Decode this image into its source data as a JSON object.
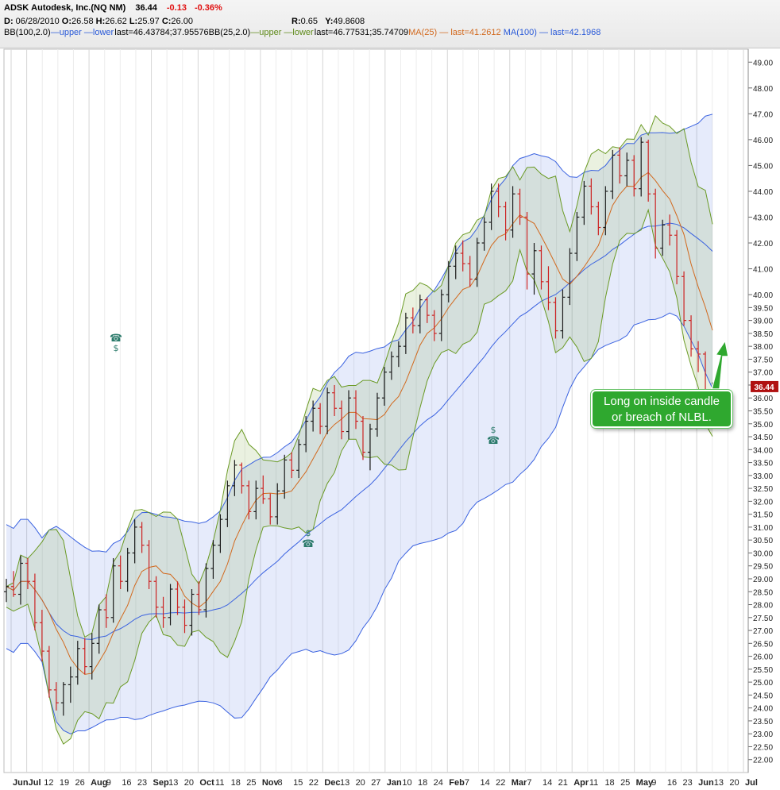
{
  "header": {
    "symbol": "ADSK",
    "company": "Autodesk, Inc.(NQ NM)",
    "last": "36.44",
    "change": "-0.13",
    "change_pct": "-0.36%",
    "date_label": "D:",
    "date": "06/28/2010",
    "open_label": "O:",
    "open": "26.58",
    "high_label": "H:",
    "high": "26.62",
    "low_label": "L:",
    "low": "25.97",
    "close_label": "C:",
    "close": "26.00",
    "r_label": "R:",
    "r": "0.65",
    "y_label": "Y:",
    "y": "49.8608",
    "bb100_label": "BB(100,2.0)",
    "bb100_upper": "upper",
    "bb100_lower": "lower",
    "bb100_last": "last=46.43784;37.95576",
    "bb25_label": "BB(25,2.0)",
    "bb25_upper": "upper",
    "bb25_lower": "lower",
    "bb25_last": "last=46.77531;35.74709",
    "ma25_label": "MA(25)",
    "ma25_last": "last=41.2612",
    "ma100_label": "MA(100)",
    "ma100_last": "last=42.1968"
  },
  "callout": {
    "line1": "Long on inside candle",
    "line2": "or breach of NLBL."
  },
  "colors": {
    "bb100": "#3a62e0",
    "bb25": "#6a9a24",
    "ma25": "#d2691e",
    "up_bar": "#1a1a1a",
    "down_bar": "#cc2222",
    "last_tag": "#b01010",
    "callout": "#2fa82f"
  },
  "chart_data": {
    "type": "ohlc",
    "ylim": [
      21.5,
      49.5
    ],
    "y_ticks": [
      "22.00",
      "22.50",
      "23.00",
      "23.50",
      "24.00",
      "24.50",
      "25.00",
      "25.50",
      "26.00",
      "26.50",
      "27.00",
      "27.50",
      "28.00",
      "28.50",
      "29.00",
      "29.50",
      "30.00",
      "30.50",
      "31.00",
      "31.50",
      "32.00",
      "32.50",
      "33.00",
      "33.50",
      "34.00",
      "34.50",
      "35.00",
      "35.50",
      "36.00",
      "36.50",
      "37.00",
      "37.50",
      "38.00",
      "38.50",
      "39.00",
      "39.50",
      "40.00",
      "41.00",
      "42.00",
      "43.00",
      "44.00",
      "45.00",
      "46.00",
      "47.00",
      "48.00",
      "49.00"
    ],
    "x_labels": [
      "Jun",
      "Jul",
      "12",
      "19",
      "26",
      "Aug",
      "9",
      "16",
      "23",
      "Sep",
      "13",
      "20",
      "Oct",
      "11",
      "18",
      "25",
      "Nov",
      "8",
      "15",
      "22",
      "Dec",
      "13",
      "20",
      "27",
      "Jan",
      "10",
      "18",
      "24",
      "Feb",
      "7",
      "14",
      "22",
      "Mar",
      "7",
      "14",
      "21",
      "Apr",
      "11",
      "18",
      "25",
      "May",
      "9",
      "16",
      "23",
      "Jun",
      "13",
      "20",
      "Jul"
    ],
    "last_value_tag": "36.44",
    "ohlc": [
      [
        28.5,
        29.0,
        28.1,
        28.7
      ],
      [
        28.7,
        29.3,
        28.3,
        28.4
      ],
      [
        28.4,
        29.9,
        28.0,
        29.6
      ],
      [
        29.6,
        29.8,
        28.6,
        28.9
      ],
      [
        28.9,
        29.2,
        27.0,
        27.3
      ],
      [
        27.3,
        27.8,
        25.8,
        26.2
      ],
      [
        26.2,
        26.4,
        24.4,
        24.7
      ],
      [
        24.7,
        25.0,
        23.9,
        24.2
      ],
      [
        24.2,
        25.0,
        23.7,
        24.9
      ],
      [
        24.9,
        25.6,
        24.2,
        25.2
      ],
      [
        25.2,
        26.6,
        24.9,
        26.3
      ],
      [
        26.3,
        26.7,
        25.3,
        25.6
      ],
      [
        25.6,
        26.9,
        25.1,
        26.5
      ],
      [
        26.5,
        28.0,
        26.1,
        27.8
      ],
      [
        27.8,
        28.4,
        27.1,
        27.5
      ],
      [
        27.5,
        29.8,
        27.3,
        29.5
      ],
      [
        29.5,
        29.9,
        28.6,
        28.9
      ],
      [
        28.9,
        30.2,
        28.5,
        30.0
      ],
      [
        30.0,
        31.3,
        29.6,
        31.0
      ],
      [
        31.0,
        31.2,
        30.0,
        30.3
      ],
      [
        30.3,
        30.5,
        28.6,
        28.9
      ],
      [
        28.9,
        29.1,
        27.5,
        27.9
      ],
      [
        27.9,
        28.3,
        27.1,
        27.5
      ],
      [
        27.5,
        28.8,
        27.2,
        28.6
      ],
      [
        28.6,
        28.9,
        27.6,
        27.9
      ],
      [
        27.9,
        28.2,
        26.9,
        27.2
      ],
      [
        27.2,
        28.6,
        26.8,
        28.4
      ],
      [
        28.4,
        28.9,
        27.6,
        27.8
      ],
      [
        27.8,
        29.6,
        27.5,
        29.4
      ],
      [
        29.4,
        30.5,
        29.0,
        30.3
      ],
      [
        30.3,
        31.5,
        30.0,
        31.3
      ],
      [
        31.3,
        32.8,
        31.0,
        32.6
      ],
      [
        32.6,
        33.6,
        32.2,
        33.4
      ],
      [
        33.4,
        33.5,
        32.3,
        32.6
      ],
      [
        32.6,
        32.8,
        31.3,
        31.6
      ],
      [
        31.6,
        32.8,
        31.3,
        32.5
      ],
      [
        32.5,
        33.0,
        31.9,
        32.1
      ],
      [
        32.1,
        32.3,
        31.1,
        31.4
      ],
      [
        31.4,
        32.7,
        31.1,
        32.4
      ],
      [
        32.4,
        33.8,
        32.1,
        33.6
      ],
      [
        33.6,
        33.9,
        32.9,
        33.2
      ],
      [
        33.2,
        34.4,
        32.9,
        34.2
      ],
      [
        34.2,
        35.3,
        33.9,
        35.1
      ],
      [
        35.1,
        35.9,
        34.7,
        35.6
      ],
      [
        35.6,
        35.8,
        34.6,
        34.9
      ],
      [
        34.9,
        36.4,
        34.6,
        36.2
      ],
      [
        36.2,
        36.5,
        35.3,
        35.6
      ],
      [
        35.6,
        35.9,
        34.4,
        34.7
      ],
      [
        34.7,
        36.3,
        34.4,
        36.0
      ],
      [
        36.0,
        36.3,
        34.8,
        35.1
      ],
      [
        35.1,
        35.3,
        33.6,
        33.9
      ],
      [
        33.9,
        35.0,
        33.2,
        34.8
      ],
      [
        34.8,
        36.2,
        34.5,
        36.0
      ],
      [
        36.0,
        37.2,
        35.7,
        37.0
      ],
      [
        37.0,
        37.8,
        36.7,
        37.6
      ],
      [
        37.6,
        38.2,
        37.2,
        38.0
      ],
      [
        38.0,
        39.3,
        37.7,
        39.1
      ],
      [
        39.1,
        39.5,
        38.5,
        38.8
      ],
      [
        38.8,
        40.0,
        38.5,
        39.8
      ],
      [
        39.8,
        39.9,
        38.9,
        39.2
      ],
      [
        39.2,
        39.4,
        38.2,
        38.5
      ],
      [
        38.5,
        40.2,
        38.2,
        40.0
      ],
      [
        40.0,
        41.3,
        39.7,
        41.1
      ],
      [
        41.1,
        41.9,
        40.6,
        41.6
      ],
      [
        41.6,
        42.1,
        40.9,
        41.2
      ],
      [
        41.2,
        41.5,
        40.3,
        40.6
      ],
      [
        40.6,
        42.2,
        40.3,
        42.0
      ],
      [
        42.0,
        43.0,
        41.7,
        42.8
      ],
      [
        42.8,
        44.3,
        42.5,
        44.0
      ],
      [
        44.0,
        44.3,
        43.0,
        43.4
      ],
      [
        43.4,
        43.6,
        42.1,
        42.5
      ],
      [
        42.5,
        44.2,
        42.2,
        43.9
      ],
      [
        43.9,
        44.1,
        42.7,
        43.0
      ],
      [
        43.0,
        43.2,
        40.2,
        40.8
      ],
      [
        40.8,
        42.0,
        40.0,
        41.7
      ],
      [
        41.7,
        41.9,
        40.2,
        40.5
      ],
      [
        40.5,
        41.1,
        39.4,
        39.7
      ],
      [
        39.7,
        39.9,
        38.3,
        38.6
      ],
      [
        38.6,
        40.2,
        38.3,
        39.9
      ],
      [
        39.9,
        41.8,
        39.6,
        41.6
      ],
      [
        41.6,
        43.2,
        41.3,
        43.0
      ],
      [
        43.0,
        44.4,
        42.7,
        44.2
      ],
      [
        44.2,
        44.5,
        43.1,
        43.4
      ],
      [
        43.4,
        43.6,
        42.3,
        42.6
      ],
      [
        42.6,
        44.2,
        42.3,
        44.0
      ],
      [
        44.0,
        45.6,
        43.7,
        45.4
      ],
      [
        45.4,
        45.7,
        44.3,
        44.6
      ],
      [
        44.6,
        45.5,
        44.2,
        45.2
      ],
      [
        45.2,
        45.4,
        43.8,
        44.1
      ],
      [
        44.1,
        46.1,
        43.8,
        45.9
      ],
      [
        45.9,
        46.0,
        43.6,
        43.9
      ],
      [
        43.9,
        44.1,
        41.4,
        41.8
      ],
      [
        41.8,
        42.9,
        41.5,
        42.7
      ],
      [
        42.7,
        43.1,
        41.9,
        42.3
      ],
      [
        42.3,
        42.5,
        40.4,
        40.7
      ],
      [
        40.7,
        40.9,
        38.8,
        39.0
      ],
      [
        39.0,
        39.2,
        37.6,
        37.9
      ],
      [
        37.9,
        38.2,
        37.0,
        37.7
      ],
      [
        37.7,
        37.8,
        35.7,
        36.3
      ],
      [
        36.3,
        36.6,
        36.1,
        36.44
      ]
    ]
  }
}
